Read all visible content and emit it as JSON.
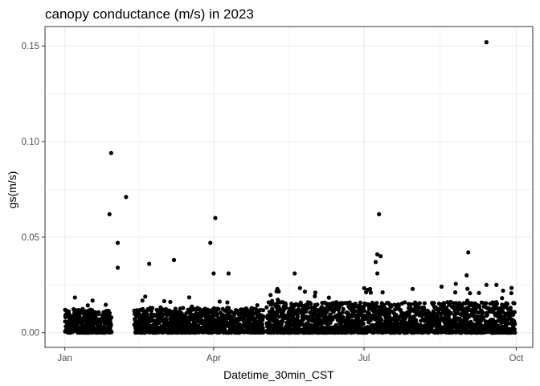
{
  "chart_data": {
    "type": "scatter",
    "title": "canopy conductance (m/s) in 2023",
    "xlabel": "Datetime_30min_CST",
    "ylabel": "gs(m/s)",
    "x_scale": "date",
    "xlim": [
      "2022-12-20",
      "2023-10-11"
    ],
    "ylim": [
      -0.0077,
      0.1602
    ],
    "x_ticks": [
      {
        "value": "2023-01-01",
        "label": "Jan"
      },
      {
        "value": "2023-04-01",
        "label": "Apr"
      },
      {
        "value": "2023-07-01",
        "label": "Jul"
      },
      {
        "value": "2023-10-01",
        "label": "Oct"
      }
    ],
    "y_ticks": [
      {
        "value": 0.0,
        "label": "0.00"
      },
      {
        "value": 0.05,
        "label": "0.05"
      },
      {
        "value": 0.1,
        "label": "0.10"
      },
      {
        "value": 0.15,
        "label": "0.15"
      }
    ],
    "grid": true,
    "legend": "none",
    "point_color": "#000000",
    "data_ranges": [
      {
        "start": "2023-01-01",
        "end": "2023-01-29",
        "typical_max": 0.012
      },
      {
        "start": "2023-02-12",
        "end": "2023-05-01",
        "typical_max": 0.013
      },
      {
        "start": "2023-05-03",
        "end": "2023-09-30",
        "typical_max": 0.016
      }
    ],
    "notable_points": [
      {
        "x": "2023-01-29",
        "y": 0.094
      },
      {
        "x": "2023-02-07",
        "y": 0.071
      },
      {
        "x": "2023-01-28",
        "y": 0.062
      },
      {
        "x": "2023-02-02",
        "y": 0.047
      },
      {
        "x": "2023-02-02",
        "y": 0.034
      },
      {
        "x": "2023-02-21",
        "y": 0.036
      },
      {
        "x": "2023-03-08",
        "y": 0.038
      },
      {
        "x": "2023-03-30",
        "y": 0.047
      },
      {
        "x": "2023-04-02",
        "y": 0.06
      },
      {
        "x": "2023-04-01",
        "y": 0.031
      },
      {
        "x": "2023-04-10",
        "y": 0.031
      },
      {
        "x": "2023-05-20",
        "y": 0.031
      },
      {
        "x": "2023-07-10",
        "y": 0.062
      },
      {
        "x": "2023-07-09",
        "y": 0.041
      },
      {
        "x": "2023-07-11",
        "y": 0.04
      },
      {
        "x": "2023-07-08",
        "y": 0.037
      },
      {
        "x": "2023-07-09",
        "y": 0.031
      },
      {
        "x": "2023-09-02",
        "y": 0.042
      },
      {
        "x": "2023-09-01",
        "y": 0.03
      },
      {
        "x": "2023-09-13",
        "y": 0.152
      },
      {
        "x": "2023-09-13",
        "y": 0.025
      },
      {
        "x": "2023-09-19",
        "y": 0.025
      }
    ]
  }
}
